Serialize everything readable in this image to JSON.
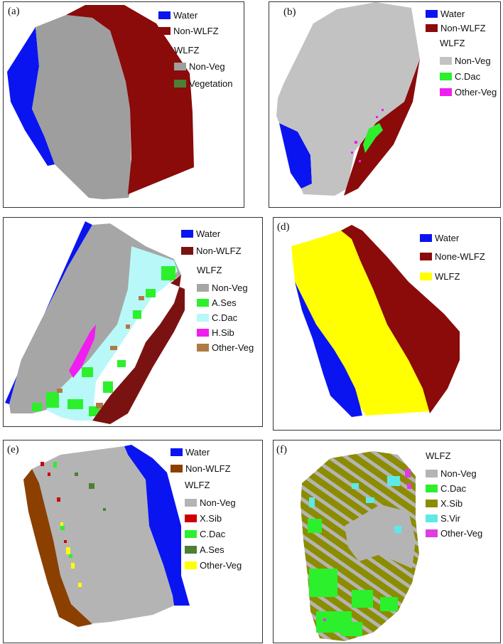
{
  "panels": [
    {
      "label": "(a)",
      "legend": [
        {
          "type": "item",
          "text": "Water",
          "color": "#0a14f0"
        },
        {
          "type": "item",
          "text": "Non-WLFZ",
          "color": "#8b0a0a"
        },
        {
          "type": "head",
          "text": "WLFZ"
        },
        {
          "type": "item",
          "text": "Non-Veg",
          "color": "#9e9e9e"
        },
        {
          "type": "item",
          "text": "Vegetation",
          "color": "#4f7f33"
        }
      ]
    },
    {
      "label": "(b)",
      "legend": [
        {
          "type": "item",
          "text": "Water",
          "color": "#0a14f0"
        },
        {
          "type": "item",
          "text": "Non-WLFZ",
          "color": "#8b0a0a"
        },
        {
          "type": "head",
          "text": "WLFZ"
        },
        {
          "type": "item",
          "text": "Non-Veg",
          "color": "#c2c2c2"
        },
        {
          "type": "item",
          "text": "C.Dac",
          "color": "#2cf02c"
        },
        {
          "type": "item",
          "text": "Other-Veg",
          "color": "#f01ef0"
        }
      ]
    },
    {
      "label": "",
      "legend": [
        {
          "type": "item",
          "text": "Water",
          "color": "#0a14f0"
        },
        {
          "type": "item",
          "text": "Non-WLFZ",
          "color": "#7b1212"
        },
        {
          "type": "head",
          "text": "WLFZ"
        },
        {
          "type": "item",
          "text": "Non-Veg",
          "color": "#a6a6a6"
        },
        {
          "type": "item",
          "text": "A.Ses",
          "color": "#2cf02c"
        },
        {
          "type": "item",
          "text": "C.Dac",
          "color": "#b8f8f8"
        },
        {
          "type": "item",
          "text": "H.Sib",
          "color": "#f01ef0"
        },
        {
          "type": "item",
          "text": "Other-Veg",
          "color": "#b07a45"
        }
      ]
    },
    {
      "label": "(d)",
      "legend": [
        {
          "type": "item",
          "text": "Water",
          "color": "#0a14f0"
        },
        {
          "type": "item",
          "text": "None-WLFZ",
          "color": "#8b0a0a"
        },
        {
          "type": "item",
          "text": "WLFZ",
          "color": "#ffff00"
        }
      ]
    },
    {
      "label": "(e)",
      "legend": [
        {
          "type": "item",
          "text": "Water",
          "color": "#0a14f0"
        },
        {
          "type": "item",
          "text": "Non-WLFZ",
          "color": "#8b4000"
        },
        {
          "type": "head",
          "text": "WLFZ"
        },
        {
          "type": "item",
          "text": "Non-Veg",
          "color": "#b4b4b4"
        },
        {
          "type": "item",
          "text": "X.Sib",
          "color": "#cc0000"
        },
        {
          "type": "item",
          "text": "C.Dac",
          "color": "#2cf02c"
        },
        {
          "type": "item",
          "text": "A.Ses",
          "color": "#4f7f33"
        },
        {
          "type": "item",
          "text": "Other-Veg",
          "color": "#ffff00"
        }
      ]
    },
    {
      "label": "(f)",
      "legend": [
        {
          "type": "head",
          "text": "WLFZ"
        },
        {
          "type": "item",
          "text": "Non-Veg",
          "color": "#b4b4b4"
        },
        {
          "type": "item",
          "text": "C.Dac",
          "color": "#2cf02c"
        },
        {
          "type": "item",
          "text": "X.Sib",
          "color": "#8c8c00"
        },
        {
          "type": "item",
          "text": "S.Vir",
          "color": "#5fe8e8"
        },
        {
          "type": "item",
          "text": "Other-Veg",
          "color": "#e03ce0"
        }
      ]
    }
  ]
}
